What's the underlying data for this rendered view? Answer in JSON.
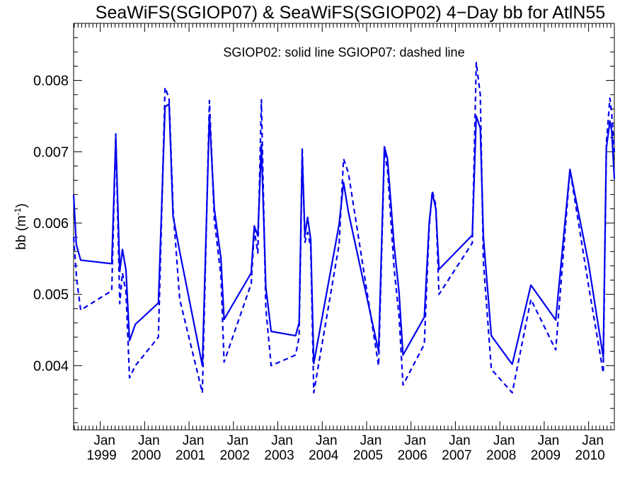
{
  "chart_data": {
    "type": "line",
    "title": "SeaWiFS(SGIOP07) & SeaWiFS(SGIOP02) 4−Day bb for AtlN55",
    "annotation": "SGIOP02: solid line   SGIOP07: dashed line",
    "ylabel": "bb (m",
    "ylabel_sup": "-1",
    "ylabel_close": ")",
    "xlabel": "",
    "ylim": [
      0.0031,
      0.0088
    ],
    "xlim": [
      1998.4,
      2010.58
    ],
    "y_ticks": [
      {
        "value": 0.004,
        "label": "0.004"
      },
      {
        "value": 0.005,
        "label": "0.005"
      },
      {
        "value": 0.006,
        "label": "0.006"
      },
      {
        "value": 0.007,
        "label": "0.007"
      },
      {
        "value": 0.008,
        "label": "0.008"
      }
    ],
    "x_ticks": [
      {
        "value": 1999.0,
        "month": "Jan",
        "year": "1999"
      },
      {
        "value": 2000.0,
        "month": "Jan",
        "year": "2000"
      },
      {
        "value": 2001.0,
        "month": "Jan",
        "year": "2001"
      },
      {
        "value": 2002.0,
        "month": "Jan",
        "year": "2002"
      },
      {
        "value": 2003.0,
        "month": "Jan",
        "year": "2003"
      },
      {
        "value": 2004.0,
        "month": "Jan",
        "year": "2004"
      },
      {
        "value": 2005.0,
        "month": "Jan",
        "year": "2005"
      },
      {
        "value": 2006.0,
        "month": "Jan",
        "year": "2006"
      },
      {
        "value": 2007.0,
        "month": "Jan",
        "year": "2007"
      },
      {
        "value": 2008.0,
        "month": "Jan",
        "year": "2008"
      },
      {
        "value": 2009.0,
        "month": "Jan",
        "year": "2009"
      },
      {
        "value": 2010.0,
        "month": "Jan",
        "year": "2010"
      }
    ],
    "grid": false,
    "legend": "none",
    "color": "#0000ee",
    "series": [
      {
        "name": "SGIOP02",
        "style": "solid",
        "x": [
          1998.4,
          1998.46,
          1998.56,
          1999.26,
          1999.35,
          1999.44,
          1999.5,
          1999.58,
          1999.66,
          1999.79,
          2000.31,
          2000.46,
          2000.55,
          2000.64,
          2000.79,
          2001.3,
          2001.46,
          2001.57,
          2001.72,
          2001.79,
          2002.4,
          2002.47,
          2002.55,
          2002.63,
          2002.73,
          2002.85,
          2003.4,
          2003.48,
          2003.55,
          2003.61,
          2003.67,
          2003.74,
          2003.81,
          2004.38,
          2004.48,
          2004.59,
          2005.27,
          2005.4,
          2005.47,
          2005.62,
          2005.73,
          2005.82,
          2006.3,
          2006.41,
          2006.48,
          2006.56,
          2006.63,
          2007.38,
          2007.47,
          2007.56,
          2007.63,
          2007.81,
          2008.28,
          2008.7,
          2009.26,
          2009.58,
          2010.0,
          2010.33,
          2010.4,
          2010.48,
          2010.52,
          2010.58
        ],
        "y": [
          0.0064,
          0.0057,
          0.00548,
          0.00543,
          0.0072,
          0.00532,
          0.00563,
          0.00534,
          0.00435,
          0.00458,
          0.00488,
          0.00763,
          0.00767,
          0.0061,
          0.0056,
          0.004,
          0.00752,
          0.0062,
          0.0055,
          0.00465,
          0.0053,
          0.00596,
          0.00582,
          0.0071,
          0.0051,
          0.00448,
          0.00442,
          0.0046,
          0.00695,
          0.00583,
          0.00608,
          0.00577,
          0.00403,
          0.00598,
          0.00657,
          0.00615,
          0.0042,
          0.00707,
          0.0069,
          0.00568,
          0.00503,
          0.00415,
          0.00468,
          0.006,
          0.00642,
          0.0062,
          0.00535,
          0.00583,
          0.0075,
          0.00733,
          0.0058,
          0.00442,
          0.00402,
          0.00513,
          0.00464,
          0.00675,
          0.00543,
          0.00412,
          0.00705,
          0.00743,
          0.0073,
          0.00662
        ]
      },
      {
        "name": "SGIOP07",
        "style": "dashed",
        "x": [
          1998.4,
          1998.47,
          1998.56,
          1999.26,
          1999.35,
          1999.44,
          1999.5,
          1999.58,
          1999.66,
          1999.79,
          2000.31,
          2000.46,
          2000.55,
          2000.64,
          2000.79,
          2001.3,
          2001.46,
          2001.57,
          2001.72,
          2001.79,
          2002.4,
          2002.47,
          2002.55,
          2002.63,
          2002.73,
          2002.85,
          2003.4,
          2003.48,
          2003.55,
          2003.61,
          2003.67,
          2003.74,
          2003.81,
          2004.38,
          2004.48,
          2004.59,
          2005.27,
          2005.4,
          2005.47,
          2005.62,
          2005.73,
          2005.82,
          2006.3,
          2006.41,
          2006.48,
          2006.56,
          2006.63,
          2007.38,
          2007.47,
          2007.56,
          2007.63,
          2007.81,
          2008.28,
          2008.7,
          2009.26,
          2009.58,
          2010.0,
          2010.33,
          2010.4,
          2010.48,
          2010.52,
          2010.58
        ],
        "y": [
          0.0058,
          0.0052,
          0.00478,
          0.00505,
          0.00725,
          0.00487,
          0.0053,
          0.00503,
          0.00383,
          0.004,
          0.0044,
          0.0079,
          0.00775,
          0.0062,
          0.00493,
          0.00362,
          0.00772,
          0.00605,
          0.00525,
          0.00405,
          0.00515,
          0.0059,
          0.00558,
          0.00773,
          0.0048,
          0.004,
          0.00415,
          0.0044,
          0.00705,
          0.00573,
          0.00587,
          0.00567,
          0.00362,
          0.0057,
          0.0069,
          0.0067,
          0.004,
          0.007,
          0.00675,
          0.00535,
          0.0047,
          0.00373,
          0.0043,
          0.00595,
          0.00645,
          0.00625,
          0.005,
          0.00572,
          0.00825,
          0.0078,
          0.00545,
          0.00395,
          0.00362,
          0.00493,
          0.00422,
          0.00675,
          0.00512,
          0.0039,
          0.00712,
          0.00775,
          0.00755,
          0.007
        ]
      }
    ]
  }
}
